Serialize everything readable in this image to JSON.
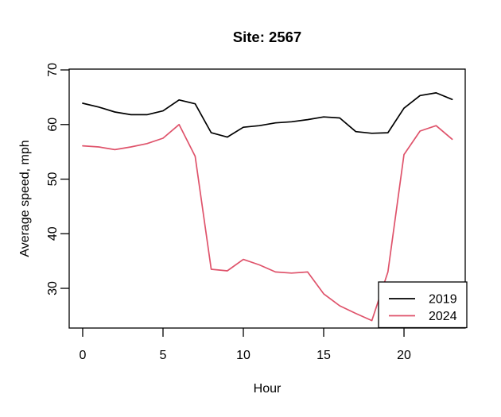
{
  "chart_data": {
    "type": "line",
    "title": "Site: 2567",
    "xlabel": "Hour",
    "ylabel": "Average speed, mph",
    "x": [
      0,
      1,
      2,
      3,
      4,
      5,
      6,
      7,
      8,
      9,
      10,
      11,
      12,
      13,
      14,
      15,
      16,
      17,
      18,
      19,
      20,
      21,
      22,
      23
    ],
    "series": [
      {
        "name": "2019",
        "color": "#000000",
        "values": [
          63.9,
          63.2,
          62.3,
          61.8,
          61.8,
          62.5,
          64.5,
          63.8,
          58.5,
          57.7,
          59.5,
          59.8,
          60.3,
          60.5,
          60.9,
          61.4,
          61.2,
          58.7,
          58.4,
          58.5,
          63.0,
          65.3,
          65.8,
          64.6
        ]
      },
      {
        "name": "2024",
        "color": "#DF536B",
        "values": [
          56.1,
          55.9,
          55.4,
          55.9,
          56.5,
          57.5,
          60.0,
          54.2,
          33.5,
          33.2,
          35.3,
          34.3,
          33.0,
          32.8,
          33.0,
          29.0,
          26.8,
          25.4,
          24.1,
          33.0,
          54.5,
          58.8,
          59.8,
          57.3
        ]
      }
    ],
    "xticks": [
      0,
      5,
      10,
      15,
      20
    ],
    "yticks": [
      30,
      40,
      50,
      60,
      70
    ],
    "xlim": [
      -0.84,
      23.81
    ],
    "ylim": [
      22.73,
      70.15
    ],
    "grid": false,
    "legend_position": "bottom-right",
    "legend": [
      "2019",
      "2024"
    ]
  }
}
